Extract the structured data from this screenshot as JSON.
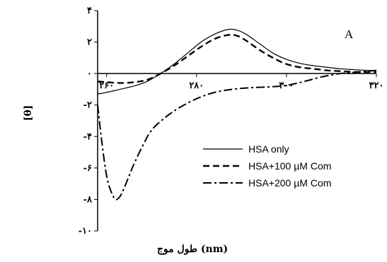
{
  "chart_data": {
    "type": "line",
    "panel_label": "A",
    "xlabel": "طول موج (nm)",
    "ylabel": "[θ]",
    "xlim": [
      258,
      320
    ],
    "ylim": [
      -10,
      4
    ],
    "x_ticks": [
      {
        "value": 260,
        "label": "۲۶۰"
      },
      {
        "value": 280,
        "label": "۲۸۰"
      },
      {
        "value": 300,
        "label": "۳۰۰"
      },
      {
        "value": 320,
        "label": "۳۲۰"
      }
    ],
    "y_ticks": [
      {
        "value": 4,
        "label": "۴"
      },
      {
        "value": 2,
        "label": "۲"
      },
      {
        "value": 0,
        "label": "۰"
      },
      {
        "value": -2,
        "label": "-۲"
      },
      {
        "value": -4,
        "label": "-۴"
      },
      {
        "value": -6,
        "label": "-۶"
      },
      {
        "value": -8,
        "label": "-۸"
      },
      {
        "value": -10,
        "label": "-۱۰"
      }
    ],
    "legend_position": "bottom-right",
    "series": [
      {
        "name": "HSA only",
        "style": "solid",
        "color": "#000000",
        "x": [
          258,
          260,
          263,
          266,
          269,
          272,
          275,
          278,
          281,
          284,
          287,
          289,
          291,
          294,
          297,
          300,
          303,
          306,
          309,
          312,
          315,
          318,
          320
        ],
        "y": [
          -1.3,
          -1.2,
          -1.0,
          -0.8,
          -0.5,
          0.0,
          0.6,
          1.3,
          2.0,
          2.5,
          2.8,
          2.75,
          2.5,
          1.9,
          1.3,
          0.9,
          0.65,
          0.5,
          0.4,
          0.3,
          0.25,
          0.2,
          0.2
        ]
      },
      {
        "name": "HSA+100 µM Com",
        "style": "dashed",
        "color": "#000000",
        "x": [
          258,
          260,
          263,
          266,
          269,
          272,
          275,
          278,
          281,
          284,
          287,
          289,
          291,
          294,
          297,
          300,
          303,
          306,
          309,
          312,
          315,
          318,
          320
        ],
        "y": [
          -0.5,
          -0.55,
          -0.6,
          -0.55,
          -0.4,
          0.0,
          0.5,
          1.1,
          1.7,
          2.2,
          2.45,
          2.4,
          2.1,
          1.5,
          1.0,
          0.6,
          0.4,
          0.3,
          0.2,
          0.15,
          0.1,
          0.1,
          0.1
        ]
      },
      {
        "name": "HSA+200 µM Com",
        "style": "dash-dot",
        "color": "#000000",
        "x": [
          258,
          259,
          260,
          261,
          262,
          263,
          264,
          265,
          266,
          268,
          270,
          273,
          276,
          280,
          284,
          288,
          292,
          296,
          300,
          304,
          308,
          312,
          316,
          320
        ],
        "y": [
          -2.0,
          -4.5,
          -6.5,
          -7.5,
          -8.0,
          -7.8,
          -7.2,
          -6.5,
          -5.8,
          -4.6,
          -3.6,
          -2.8,
          -2.2,
          -1.6,
          -1.2,
          -1.0,
          -0.9,
          -0.85,
          -0.75,
          -0.5,
          -0.2,
          0.0,
          0.1,
          0.2
        ]
      }
    ]
  }
}
